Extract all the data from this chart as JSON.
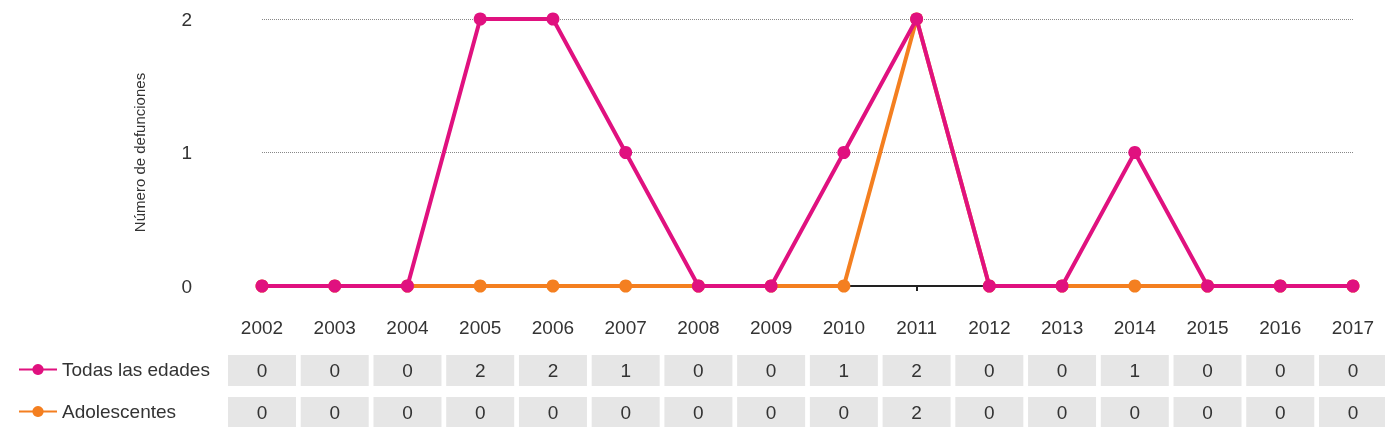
{
  "chart_data": {
    "type": "line",
    "ylabel": "Número de defunciones",
    "categories": [
      "2002",
      "2003",
      "2004",
      "2005",
      "2006",
      "2007",
      "2008",
      "2009",
      "2010",
      "2011",
      "2012",
      "2013",
      "2014",
      "2015",
      "2016",
      "2017"
    ],
    "series": [
      {
        "name": "Todas las edades",
        "color": "#e0117f",
        "values": [
          0,
          0,
          0,
          2,
          2,
          1,
          0,
          0,
          1,
          2,
          0,
          0,
          1,
          0,
          0,
          0
        ]
      },
      {
        "name": "Adolescentes",
        "color": "#f47f20",
        "values": [
          0,
          0,
          0,
          0,
          0,
          0,
          0,
          0,
          0,
          2,
          0,
          0,
          0,
          0,
          0,
          0
        ]
      }
    ],
    "ylim": [
      0,
      2
    ],
    "yticks": [
      0,
      1,
      2
    ],
    "grid": "y",
    "legend": "bottom left",
    "marker": "circle",
    "line_style": "solid",
    "data_labels": true
  }
}
